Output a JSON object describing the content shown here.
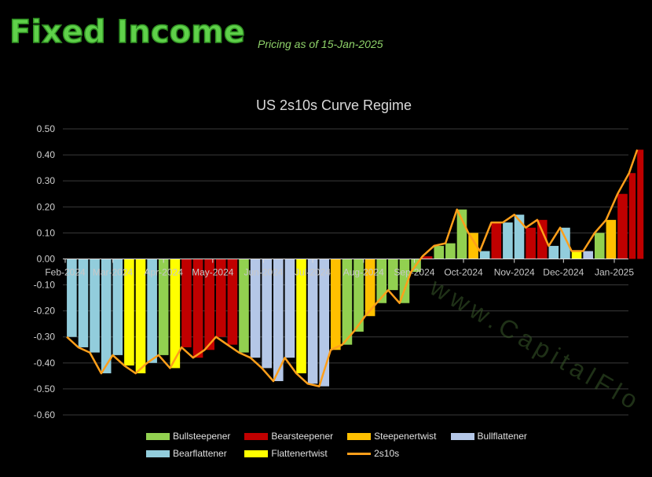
{
  "header": {
    "brand": "Fixed Income",
    "pricing": "Pricing as of 15-Jan-2025"
  },
  "watermark": "www.CapitalFlo",
  "chart_data": {
    "type": "bar+line",
    "title": "US 2s10s Curve Regime",
    "ylim": [
      -0.6,
      0.5
    ],
    "yticks": [
      "0.50",
      "0.40",
      "0.30",
      "0.20",
      "0.10",
      "0.00",
      "-0.10",
      "-0.20",
      "-0.30",
      "-0.40",
      "-0.50",
      "-0.60"
    ],
    "yticks_values": [
      0.5,
      0.4,
      0.3,
      0.2,
      0.1,
      0,
      -0.1,
      -0.2,
      -0.3,
      -0.4,
      -0.5,
      -0.6
    ],
    "xticks": [
      {
        "date": "2024-02-01",
        "label": "Feb-2024"
      },
      {
        "date": "2024-03-01",
        "label": "Mar-2024"
      },
      {
        "date": "2024-04-01",
        "label": "Apr-2024"
      },
      {
        "date": "2024-05-01",
        "label": "May-2024"
      },
      {
        "date": "2024-06-01",
        "label": "Jun-2024"
      },
      {
        "date": "2024-07-01",
        "label": "Jul-2024"
      },
      {
        "date": "2024-08-01",
        "label": "Aug-2024"
      },
      {
        "date": "2024-09-01",
        "label": "Sep-2024"
      },
      {
        "date": "2024-10-01",
        "label": "Oct-2024"
      },
      {
        "date": "2024-11-01",
        "label": "Nov-2024"
      },
      {
        "date": "2024-12-01",
        "label": "Dec-2024"
      },
      {
        "date": "2025-01-01",
        "label": "Jan-2025"
      }
    ],
    "grid": true,
    "legend_position": "bottom",
    "regimes": [
      {
        "key": "bullsteepener",
        "name": "Bullsteepener",
        "color": "#92d050"
      },
      {
        "key": "bearsteepener",
        "name": "Bearsteepener",
        "color": "#c00000"
      },
      {
        "key": "steepenertwist",
        "name": "Steepenertwist",
        "color": "#ffc000"
      },
      {
        "key": "bullflattener",
        "name": "Bullflattener",
        "color": "#b4c7e7"
      },
      {
        "key": "bearflattener",
        "name": "Bearflattener",
        "color": "#92cddc"
      },
      {
        "key": "flattenertwist",
        "name": "Flattenertwist",
        "color": "#ffff00"
      }
    ],
    "line_series": {
      "name": "2s10s",
      "color": "#ff9f1a"
    },
    "points": [
      {
        "date": "2024-02-02",
        "value": -0.3,
        "regime": "bearflattener"
      },
      {
        "date": "2024-02-09",
        "value": -0.34,
        "regime": "bearflattener"
      },
      {
        "date": "2024-02-16",
        "value": -0.36,
        "regime": "bearflattener"
      },
      {
        "date": "2024-02-23",
        "value": -0.44,
        "regime": "bearflattener"
      },
      {
        "date": "2024-03-01",
        "value": -0.37,
        "regime": "bearflattener"
      },
      {
        "date": "2024-03-08",
        "value": -0.41,
        "regime": "flattenertwist"
      },
      {
        "date": "2024-03-15",
        "value": -0.44,
        "regime": "flattenertwist"
      },
      {
        "date": "2024-03-22",
        "value": -0.4,
        "regime": "bearflattener"
      },
      {
        "date": "2024-03-29",
        "value": -0.37,
        "regime": "bullsteepener"
      },
      {
        "date": "2024-04-05",
        "value": -0.42,
        "regime": "flattenertwist"
      },
      {
        "date": "2024-04-12",
        "value": -0.34,
        "regime": "bearsteepener"
      },
      {
        "date": "2024-04-19",
        "value": -0.38,
        "regime": "bearsteepener"
      },
      {
        "date": "2024-04-26",
        "value": -0.35,
        "regime": "bearsteepener"
      },
      {
        "date": "2024-05-03",
        "value": -0.3,
        "regime": "bearsteepener"
      },
      {
        "date": "2024-05-10",
        "value": -0.33,
        "regime": "bearsteepener"
      },
      {
        "date": "2024-05-17",
        "value": -0.36,
        "regime": "bullsteepener"
      },
      {
        "date": "2024-05-24",
        "value": -0.38,
        "regime": "bullflattener"
      },
      {
        "date": "2024-05-31",
        "value": -0.42,
        "regime": "bullflattener"
      },
      {
        "date": "2024-06-07",
        "value": -0.47,
        "regime": "bullflattener"
      },
      {
        "date": "2024-06-14",
        "value": -0.38,
        "regime": "bullflattener"
      },
      {
        "date": "2024-06-21",
        "value": -0.44,
        "regime": "flattenertwist"
      },
      {
        "date": "2024-06-28",
        "value": -0.48,
        "regime": "bullflattener"
      },
      {
        "date": "2024-07-05",
        "value": -0.49,
        "regime": "bullflattener"
      },
      {
        "date": "2024-07-12",
        "value": -0.35,
        "regime": "steepenertwist"
      },
      {
        "date": "2024-07-19",
        "value": -0.33,
        "regime": "bullsteepener"
      },
      {
        "date": "2024-07-26",
        "value": -0.28,
        "regime": "bullsteepener"
      },
      {
        "date": "2024-08-02",
        "value": -0.22,
        "regime": "steepenertwist"
      },
      {
        "date": "2024-08-09",
        "value": -0.17,
        "regime": "bullsteepener"
      },
      {
        "date": "2024-08-16",
        "value": -0.12,
        "regime": "bullsteepener"
      },
      {
        "date": "2024-08-23",
        "value": -0.17,
        "regime": "bullsteepener"
      },
      {
        "date": "2024-08-30",
        "value": -0.05,
        "regime": "bullsteepener"
      },
      {
        "date": "2024-09-06",
        "value": 0.01,
        "regime": "bearsteepener"
      },
      {
        "date": "2024-09-13",
        "value": 0.05,
        "regime": "bullsteepener"
      },
      {
        "date": "2024-09-20",
        "value": 0.06,
        "regime": "bullsteepener"
      },
      {
        "date": "2024-09-27",
        "value": 0.19,
        "regime": "bullsteepener"
      },
      {
        "date": "2024-10-04",
        "value": 0.1,
        "regime": "steepenertwist"
      },
      {
        "date": "2024-10-11",
        "value": 0.03,
        "regime": "bearflattener"
      },
      {
        "date": "2024-10-18",
        "value": 0.14,
        "regime": "bearsteepener"
      },
      {
        "date": "2024-10-25",
        "value": 0.14,
        "regime": "bearflattener"
      },
      {
        "date": "2024-11-01",
        "value": 0.17,
        "regime": "bearflattener"
      },
      {
        "date": "2024-11-08",
        "value": 0.12,
        "regime": "bearsteepener"
      },
      {
        "date": "2024-11-15",
        "value": 0.15,
        "regime": "bearsteepener"
      },
      {
        "date": "2024-11-22",
        "value": 0.05,
        "regime": "bearflattener"
      },
      {
        "date": "2024-11-29",
        "value": 0.12,
        "regime": "bearflattener"
      },
      {
        "date": "2024-12-06",
        "value": 0.03,
        "regime": "flattenertwist"
      },
      {
        "date": "2024-12-13",
        "value": 0.03,
        "regime": "bullflattener"
      },
      {
        "date": "2024-12-20",
        "value": 0.1,
        "regime": "bullsteepener"
      },
      {
        "date": "2024-12-27",
        "value": 0.15,
        "regime": "steepenertwist"
      },
      {
        "date": "2025-01-03",
        "value": 0.25,
        "regime": "bearsteepener"
      },
      {
        "date": "2025-01-10",
        "value": 0.33,
        "regime": "bearsteepener"
      },
      {
        "date": "2025-01-15",
        "value": 0.42,
        "regime": "bearsteepener"
      }
    ]
  }
}
